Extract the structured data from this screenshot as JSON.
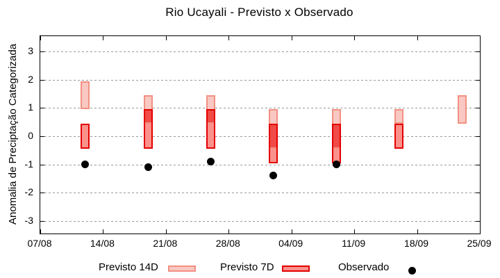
{
  "chart_data": {
    "type": "bar",
    "title": "Rio Ucayali - Previsto x Observado",
    "ylabel": "Anomalia de Preciptação Categorizada",
    "ylim": [
      -3.5,
      3.5
    ],
    "yticks": [
      3,
      2,
      1,
      0,
      -1,
      -2,
      -3
    ],
    "xticks": [
      {
        "label": "07/08",
        "day": 0
      },
      {
        "label": "14/08",
        "day": 7
      },
      {
        "label": "21/08",
        "day": 14
      },
      {
        "label": "28/08",
        "day": 21
      },
      {
        "label": "04/09",
        "day": 28
      },
      {
        "label": "11/09",
        "day": 35
      },
      {
        "label": "18/09",
        "day": 42
      },
      {
        "label": "25/09",
        "day": 49
      }
    ],
    "grid": {
      "horizontal": "dotted",
      "color": "#999999"
    },
    "legend_position": "bottom-outside",
    "series": [
      {
        "name": "Previsto 14D",
        "type": "floating_bar",
        "fill": "#f9c8c2",
        "border": "#f29082",
        "points": [
          {
            "date": "12/08",
            "day": 5,
            "low": 0.95,
            "high": 1.95
          },
          {
            "date": "19/08",
            "day": 12,
            "low": 0.45,
            "high": 1.45
          },
          {
            "date": "26/08",
            "day": 19,
            "low": 0.45,
            "high": 1.45
          },
          {
            "date": "02/09",
            "day": 26,
            "low": -0.45,
            "high": 0.95
          },
          {
            "date": "09/09",
            "day": 33,
            "low": -0.45,
            "high": 0.95
          },
          {
            "date": "16/09",
            "day": 40,
            "low": 0.45,
            "high": 0.95
          },
          {
            "date": "23/09",
            "day": 47,
            "low": 0.45,
            "high": 1.45
          }
        ]
      },
      {
        "name": "Previsto 7D",
        "type": "floating_bar",
        "fill": "#fa918a",
        "border": "#e30000",
        "overlap_fill": "#f04b46",
        "points": [
          {
            "date": "12/08",
            "day": 5,
            "low": -0.45,
            "high": 0.45
          },
          {
            "date": "19/08",
            "day": 12,
            "low": -0.45,
            "high": 0.95
          },
          {
            "date": "26/08",
            "day": 19,
            "low": -0.45,
            "high": 0.95
          },
          {
            "date": "02/09",
            "day": 26,
            "low": -0.95,
            "high": 0.45
          },
          {
            "date": "09/09",
            "day": 33,
            "low": -0.95,
            "high": 0.45
          },
          {
            "date": "16/09",
            "day": 40,
            "low": -0.45,
            "high": 0.45
          }
        ]
      },
      {
        "name": "Observado",
        "type": "scatter",
        "fill": "#000000",
        "points": [
          {
            "date": "12/08",
            "day": 5,
            "value": -1.0
          },
          {
            "date": "19/08",
            "day": 12,
            "value": -1.1
          },
          {
            "date": "26/08",
            "day": 19,
            "value": -0.9
          },
          {
            "date": "02/09",
            "day": 26,
            "value": -1.4
          },
          {
            "date": "09/09",
            "day": 33,
            "value": -1.0
          }
        ]
      }
    ]
  }
}
